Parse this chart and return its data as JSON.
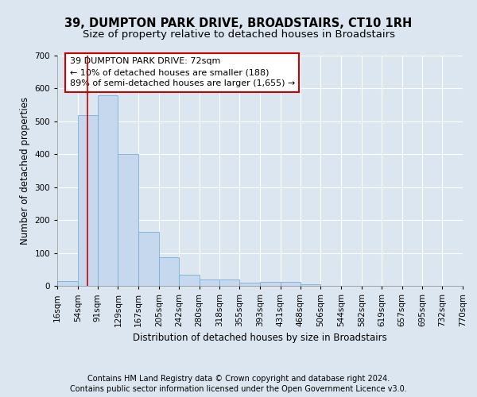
{
  "title": "39, DUMPTON PARK DRIVE, BROADSTAIRS, CT10 1RH",
  "subtitle": "Size of property relative to detached houses in Broadstairs",
  "xlabel": "Distribution of detached houses by size in Broadstairs",
  "ylabel": "Number of detached properties",
  "footnote1": "Contains HM Land Registry data © Crown copyright and database right 2024.",
  "footnote2": "Contains public sector information licensed under the Open Government Licence v3.0.",
  "bar_edges": [
    16,
    54,
    91,
    129,
    167,
    205,
    242,
    280,
    318,
    355,
    393,
    431,
    468,
    506,
    544,
    582,
    619,
    657,
    695,
    732,
    770
  ],
  "bar_heights": [
    15,
    520,
    580,
    400,
    165,
    88,
    33,
    20,
    20,
    10,
    12,
    12,
    5,
    0,
    0,
    0,
    0,
    0,
    0,
    0
  ],
  "bar_color": "#c5d8ed",
  "bar_edgecolor": "#7aafd4",
  "property_sqm": 72,
  "annotation_line1": "39 DUMPTON PARK DRIVE: 72sqm",
  "annotation_line2": "← 10% of detached houses are smaller (188)",
  "annotation_line3": "89% of semi-detached houses are larger (1,655) →",
  "annotation_box_color": "#ffffff",
  "annotation_box_edgecolor": "#cc0000",
  "vline_color": "#cc0000",
  "ylim": [
    0,
    700
  ],
  "yticks": [
    0,
    100,
    200,
    300,
    400,
    500,
    600,
    700
  ],
  "xlim": [
    16,
    770
  ],
  "background_color": "#dce6f0",
  "plot_bg_color": "#dce6f0",
  "grid_color": "#ffffff",
  "title_fontsize": 10.5,
  "subtitle_fontsize": 9.5,
  "annotation_fontsize": 8,
  "axis_label_fontsize": 8.5,
  "tick_fontsize": 7.5,
  "footnote_fontsize": 7
}
